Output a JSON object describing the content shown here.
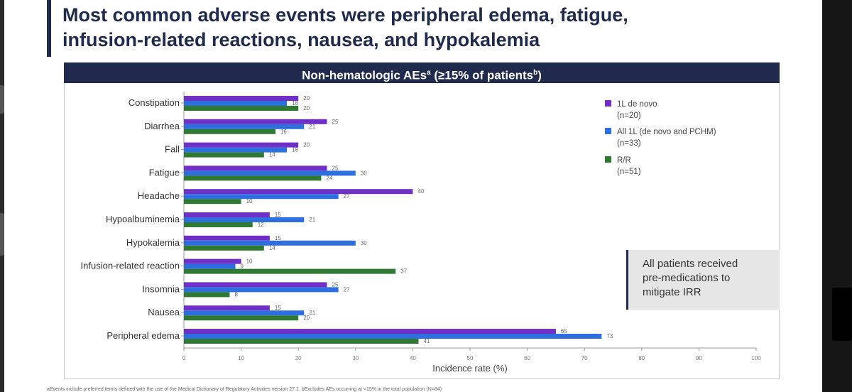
{
  "title": {
    "line1": "Most common adverse events were peripheral edema, fatigue,",
    "line2": "infusion-related reactions, nausea, and hypokalemia"
  },
  "panel": {
    "title_main": "Non-hematologic AEs",
    "title_sup_a": "a",
    "title_mid": " (≥15% of patients",
    "title_sup_b": "b",
    "title_end": ")"
  },
  "note": {
    "line1": "All patients received",
    "line2": "pre-medications to",
    "line3": "mitigate IRR"
  },
  "footnote": "aEvents include preferred terms defined with the use of the Medical Dictionary of Regulatory Activities version 27.1. bExcludes AEs occurring at <15% in the total population (N=84)",
  "chart_data": {
    "type": "bar",
    "orientation": "horizontal",
    "categories": [
      "Constipation",
      "Diarrhea",
      "Fall",
      "Fatigue",
      "Headache",
      "Hypoalbuminemia",
      "Hypokalemia",
      "Infusion-related reaction",
      "Insomnia",
      "Nausea",
      "Peripheral edema"
    ],
    "series": [
      {
        "name": "1L de novo",
        "name_n": "(n=20)",
        "color": "#7030c8",
        "values": [
          20,
          25,
          20,
          25,
          40,
          15,
          15,
          10,
          25,
          15,
          65
        ]
      },
      {
        "name": "All 1L (de novo and PCHM)",
        "name_n": "(n=33)",
        "color": "#2e6fe0",
        "values": [
          18,
          21,
          18,
          30,
          27,
          21,
          30,
          9,
          27,
          21,
          73
        ]
      },
      {
        "name": "R/R",
        "name_n": "(n=51)",
        "color": "#2e7a32",
        "values": [
          20,
          16,
          14,
          24,
          10,
          12,
          14,
          37,
          8,
          20,
          41
        ]
      }
    ],
    "xlabel": "Incidence rate (%)",
    "xlim": [
      0,
      100
    ],
    "xticks": [
      0,
      10,
      20,
      30,
      40,
      50,
      60,
      70,
      80,
      90,
      100
    ],
    "grid": false,
    "legend_position": "top-right"
  }
}
